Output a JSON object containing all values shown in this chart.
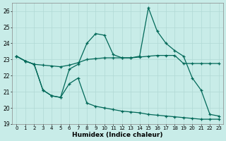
{
  "xlabel": "Humidex (Indice chaleur)",
  "bg_color": "#c8ece8",
  "grid_color": "#b0d8d4",
  "line_color": "#006858",
  "xlim": [
    -0.5,
    23.5
  ],
  "ylim": [
    19,
    26.5
  ],
  "yticks": [
    19,
    20,
    21,
    22,
    23,
    24,
    25,
    26
  ],
  "xticks": [
    0,
    1,
    2,
    3,
    4,
    5,
    6,
    7,
    8,
    9,
    10,
    11,
    12,
    13,
    14,
    15,
    16,
    17,
    18,
    19,
    20,
    21,
    22,
    23
  ],
  "line1_x": [
    0,
    1,
    2,
    3,
    4,
    5,
    6,
    7,
    8,
    9,
    10,
    11,
    12,
    13,
    14,
    15,
    16,
    17,
    18,
    19,
    20,
    21,
    22,
    23
  ],
  "line1_y": [
    23.2,
    22.9,
    22.7,
    22.65,
    22.6,
    22.55,
    22.65,
    22.8,
    23.0,
    23.05,
    23.1,
    23.1,
    23.1,
    23.1,
    23.15,
    23.2,
    23.25,
    23.25,
    23.25,
    22.75,
    22.75,
    22.75,
    22.75,
    22.75
  ],
  "line2_x": [
    0,
    1,
    2,
    3,
    4,
    5,
    6,
    7,
    8,
    9,
    10,
    11,
    12,
    13,
    14,
    15,
    16,
    17,
    18,
    19,
    20,
    21,
    22,
    23
  ],
  "line2_y": [
    23.2,
    22.9,
    22.7,
    21.1,
    20.75,
    20.65,
    22.4,
    22.7,
    24.0,
    24.6,
    24.5,
    23.3,
    23.1,
    23.1,
    23.2,
    26.2,
    24.75,
    24.0,
    23.55,
    23.2,
    21.85,
    21.1,
    19.6,
    19.5
  ],
  "line3_x": [
    0,
    1,
    2,
    3,
    4,
    5,
    6,
    7,
    8,
    9,
    10,
    11,
    12,
    13,
    14,
    15,
    16,
    17,
    18,
    19,
    20,
    21,
    22,
    23
  ],
  "line3_y": [
    23.2,
    22.9,
    22.7,
    21.1,
    20.75,
    20.65,
    21.5,
    21.85,
    20.3,
    20.1,
    20.0,
    19.9,
    19.8,
    19.75,
    19.7,
    19.6,
    19.55,
    19.5,
    19.45,
    19.4,
    19.35,
    19.3,
    19.3,
    19.3
  ]
}
